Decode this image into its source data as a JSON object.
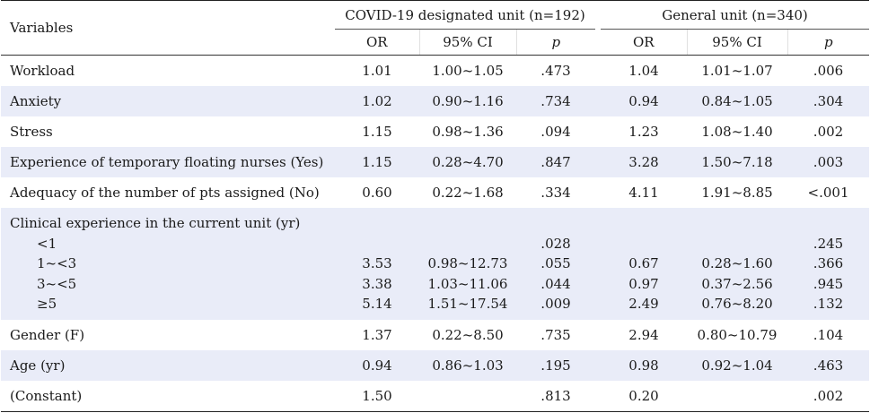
{
  "header": {
    "variables": "Variables",
    "group1": "COVID-19 designated unit (n=192)",
    "group2": "General unit (n=340)",
    "or": "OR",
    "ci": "95% CI",
    "p": "p"
  },
  "rows": [
    {
      "label": "Workload",
      "or1": "1.01",
      "ci1": "1.00~1.05",
      "p1": ".473",
      "or2": "1.04",
      "ci2": "1.01~1.07",
      "p2": ".006"
    },
    {
      "label": "Anxiety",
      "or1": "1.02",
      "ci1": "0.90~1.16",
      "p1": ".734",
      "or2": "0.94",
      "ci2": "0.84~1.05",
      "p2": ".304"
    },
    {
      "label": "Stress",
      "or1": "1.15",
      "ci1": "0.98~1.36",
      "p1": ".094",
      "or2": "1.23",
      "ci2": "1.08~1.40",
      "p2": ".002"
    },
    {
      "label": "Experience of temporary floating nurses (Yes)",
      "or1": "1.15",
      "ci1": "0.28~4.70",
      "p1": ".847",
      "or2": "3.28",
      "ci2": "1.50~7.18",
      "p2": ".003"
    },
    {
      "label": "Adequacy of the number of pts assigned (No)",
      "or1": "0.60",
      "ci1": "0.22~1.68",
      "p1": ".334",
      "or2": "4.11",
      "ci2": "1.91~8.85",
      "p2": "<.001"
    }
  ],
  "clinical": {
    "label": "Clinical experience in the current unit (yr)",
    "sub": [
      {
        "label": "<1",
        "or1": "",
        "ci1": "",
        "p1": ".028",
        "or2": "",
        "ci2": "",
        "p2": ".245"
      },
      {
        "label": "1~<3",
        "or1": "3.53",
        "ci1": "0.98~12.73",
        "p1": ".055",
        "or2": "0.67",
        "ci2": "0.28~1.60",
        "p2": ".366"
      },
      {
        "label": "3~<5",
        "or1": "3.38",
        "ci1": "1.03~11.06",
        "p1": ".044",
        "or2": "0.97",
        "ci2": "0.37~2.56",
        "p2": ".945"
      },
      {
        "label": "≥5",
        "or1": "5.14",
        "ci1": "1.51~17.54",
        "p1": ".009",
        "or2": "2.49",
        "ci2": "0.76~8.20",
        "p2": ".132"
      }
    ]
  },
  "rows2": [
    {
      "label": "Gender (F)",
      "or1": "1.37",
      "ci1": "0.22~8.50",
      "p1": ".735",
      "or2": "2.94",
      "ci2": "0.80~10.79",
      "p2": ".104"
    },
    {
      "label": "Age (yr)",
      "or1": "0.94",
      "ci1": "0.86~1.03",
      "p1": ".195",
      "or2": "0.98",
      "ci2": "0.92~1.04",
      "p2": ".463"
    },
    {
      "label": "(Constant)",
      "or1": "1.50",
      "ci1": "",
      "p1": ".813",
      "or2": "0.20",
      "ci2": "",
      "p2": ".002"
    }
  ]
}
